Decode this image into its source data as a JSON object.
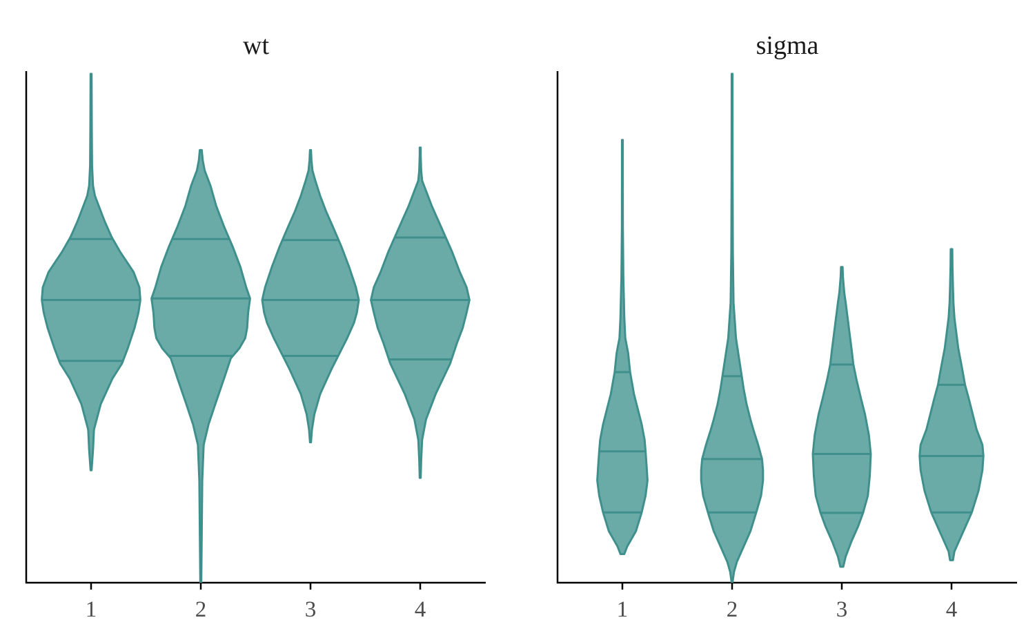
{
  "style": {
    "fill": "#6aaba8",
    "stroke": "#3f908c"
  },
  "chart_data": [
    {
      "type": "violin",
      "title": "wt",
      "categories": [
        "1",
        "2",
        "3",
        "4"
      ],
      "ylim": [
        0,
        100
      ],
      "y_axis_labels": false,
      "violins": [
        {
          "chain": "1",
          "min": 22,
          "max": 100,
          "quantiles": [
            43.5,
            55.5,
            67.5
          ],
          "profile": [
            [
              22,
              0.5
            ],
            [
              26,
              2
            ],
            [
              30,
              3
            ],
            [
              35,
              10
            ],
            [
              40,
              22
            ],
            [
              43,
              32
            ],
            [
              46,
              38
            ],
            [
              50,
              45
            ],
            [
              53,
              49
            ],
            [
              55.5,
              51
            ],
            [
              58,
              50
            ],
            [
              61,
              44
            ],
            [
              65,
              30
            ],
            [
              68,
              21
            ],
            [
              71,
              14
            ],
            [
              74,
              8
            ],
            [
              76,
              4
            ],
            [
              78,
              2
            ],
            [
              82,
              1
            ],
            [
              90,
              0.7
            ],
            [
              100,
              0.5
            ]
          ]
        },
        {
          "chain": "2",
          "min": 0,
          "max": 85,
          "quantiles": [
            44.5,
            55.8,
            67.5
          ],
          "profile": [
            [
              0,
              0.5
            ],
            [
              10,
              1
            ],
            [
              20,
              1.5
            ],
            [
              27,
              3
            ],
            [
              31,
              8
            ],
            [
              35,
              15
            ],
            [
              40,
              24
            ],
            [
              44,
              31
            ],
            [
              46,
              40
            ],
            [
              48,
              46
            ],
            [
              50,
              48
            ],
            [
              53,
              49
            ],
            [
              55.8,
              51
            ],
            [
              58,
              47
            ],
            [
              62,
              41
            ],
            [
              66,
              33
            ],
            [
              70,
              24
            ],
            [
              74,
              16
            ],
            [
              78,
              10
            ],
            [
              81,
              4
            ],
            [
              83,
              2
            ],
            [
              85,
              1
            ]
          ]
        },
        {
          "chain": "3",
          "min": 27.5,
          "max": 85,
          "quantiles": [
            44.5,
            55.5,
            67.3
          ],
          "profile": [
            [
              27.5,
              0.5
            ],
            [
              30,
              1.5
            ],
            [
              33,
              4
            ],
            [
              37,
              10
            ],
            [
              42,
              22
            ],
            [
              45,
              30
            ],
            [
              48,
              38
            ],
            [
              51,
              45
            ],
            [
              53,
              48
            ],
            [
              55.5,
              50
            ],
            [
              58,
              47
            ],
            [
              62,
              40
            ],
            [
              66,
              32
            ],
            [
              70,
              23
            ],
            [
              73,
              16
            ],
            [
              76,
              10
            ],
            [
              79,
              5
            ],
            [
              81,
              2
            ],
            [
              83,
              1
            ],
            [
              85,
              0.5
            ]
          ]
        },
        {
          "chain": "4",
          "min": 20.5,
          "max": 85.5,
          "quantiles": [
            43.8,
            55.5,
            67.8
          ],
          "profile": [
            [
              20.5,
              0.5
            ],
            [
              24,
              1
            ],
            [
              28,
              2
            ],
            [
              32,
              6
            ],
            [
              37,
              16
            ],
            [
              43,
              31
            ],
            [
              47,
              38
            ],
            [
              50,
              44
            ],
            [
              53,
              48
            ],
            [
              55.5,
              51
            ],
            [
              58,
              48
            ],
            [
              61,
              41
            ],
            [
              65,
              33
            ],
            [
              68,
              26
            ],
            [
              71,
              19
            ],
            [
              74,
              12
            ],
            [
              77,
              6
            ],
            [
              79,
              2
            ],
            [
              81,
              1
            ],
            [
              84,
              0.5
            ],
            [
              85.5,
              0.5
            ]
          ]
        }
      ]
    },
    {
      "type": "violin",
      "title": "sigma",
      "categories": [
        "1",
        "2",
        "3",
        "4"
      ],
      "ylim": [
        0,
        100
      ],
      "y_axis_labels": false,
      "violins": [
        {
          "chain": "1",
          "min": 5.5,
          "max": 87,
          "quantiles": [
            13.7,
            25.7,
            41.3
          ],
          "profile": [
            [
              5.5,
              2
            ],
            [
              7,
              5
            ],
            [
              10,
              14
            ],
            [
              13.7,
              20
            ],
            [
              17,
              24
            ],
            [
              20,
              26
            ],
            [
              23,
              25
            ],
            [
              25.7,
              24
            ],
            [
              28,
              23
            ],
            [
              31,
              20
            ],
            [
              34,
              16
            ],
            [
              37,
              12
            ],
            [
              41.3,
              8
            ],
            [
              45,
              6
            ],
            [
              48,
              3
            ],
            [
              52,
              2
            ],
            [
              60,
              1
            ],
            [
              70,
              0.5
            ],
            [
              80,
              0.4
            ],
            [
              87,
              0.4
            ]
          ]
        },
        {
          "chain": "2",
          "min": 0,
          "max": 100,
          "quantiles": [
            13.7,
            24.2,
            40.5
          ],
          "profile": [
            [
              0,
              0.5
            ],
            [
              2,
              2
            ],
            [
              4,
              5
            ],
            [
              7,
              12
            ],
            [
              10,
              19
            ],
            [
              13.7,
              25
            ],
            [
              17,
              30
            ],
            [
              20,
              32
            ],
            [
              22,
              32
            ],
            [
              24.2,
              31
            ],
            [
              27,
              27
            ],
            [
              30,
              22
            ],
            [
              32,
              19
            ],
            [
              35,
              15
            ],
            [
              38,
              12
            ],
            [
              40.5,
              10
            ],
            [
              43,
              8
            ],
            [
              48,
              4
            ],
            [
              55,
              1.5
            ],
            [
              65,
              0.8
            ],
            [
              80,
              0.5
            ],
            [
              100,
              0.4
            ]
          ]
        },
        {
          "chain": "3",
          "min": 3,
          "max": 62,
          "quantiles": [
            13.6,
            25.2,
            42.8
          ],
          "profile": [
            [
              3,
              1.5
            ],
            [
              5,
              4
            ],
            [
              8,
              10
            ],
            [
              11,
              17
            ],
            [
              13.6,
              22
            ],
            [
              17,
              27
            ],
            [
              21,
              29
            ],
            [
              25.2,
              30
            ],
            [
              29,
              28
            ],
            [
              33,
              24
            ],
            [
              36,
              20
            ],
            [
              40,
              15
            ],
            [
              42.8,
              12
            ],
            [
              46,
              10
            ],
            [
              49,
              8
            ],
            [
              52,
              6
            ],
            [
              55,
              4
            ],
            [
              57,
              2.5
            ],
            [
              60,
              1.2
            ],
            [
              62,
              0.8
            ]
          ]
        },
        {
          "chain": "4",
          "min": 4.3,
          "max": 65.5,
          "quantiles": [
            13.7,
            24.8,
            38.8
          ],
          "profile": [
            [
              4.3,
              1.5
            ],
            [
              6,
              3
            ],
            [
              9,
              10
            ],
            [
              13.7,
              21
            ],
            [
              18,
              28
            ],
            [
              22,
              32
            ],
            [
              24.8,
              33
            ],
            [
              27,
              32
            ],
            [
              30,
              26
            ],
            [
              33,
              22
            ],
            [
              36,
              18
            ],
            [
              38.8,
              14
            ],
            [
              42,
              11
            ],
            [
              46,
              7
            ],
            [
              49,
              5
            ],
            [
              52,
              3
            ],
            [
              55,
              2
            ],
            [
              58,
              1.5
            ],
            [
              62,
              1
            ],
            [
              65.5,
              0.8
            ]
          ]
        }
      ]
    }
  ]
}
